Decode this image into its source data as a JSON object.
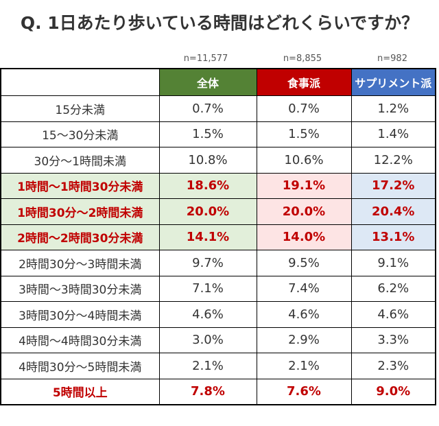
{
  "title": "Q. 1日あたり歩いている時間はどれくらいですか？",
  "sample_sizes": [
    "n=11,577",
    "n=8,855",
    "n=982"
  ],
  "columns": [
    {
      "label": "全体",
      "color": "#548235"
    },
    {
      "label": "食事派",
      "color": "#c00000"
    },
    {
      "label": "サプリメント派",
      "color": "#4472c4"
    }
  ],
  "rows": [
    {
      "label": "15分未満",
      "v": [
        "0.7%",
        "0.7%",
        "1.2%"
      ]
    },
    {
      "label": "15～30分未満",
      "v": [
        "1.5%",
        "1.5%",
        "1.4%"
      ]
    },
    {
      "label": "30分～1時間未満",
      "v": [
        "10.8%",
        "10.6%",
        "12.2%"
      ]
    },
    {
      "label": "1時間～1時間30分未満",
      "v": [
        "18.6%",
        "19.1%",
        "17.2%"
      ]
    },
    {
      "label": "1時間30分～2時間未満",
      "v": [
        "20.0%",
        "20.0%",
        "20.4%"
      ]
    },
    {
      "label": "2時間～2時間30分未満",
      "v": [
        "14.1%",
        "14.0%",
        "13.1%"
      ]
    },
    {
      "label": "2時間30分～3時間未満",
      "v": [
        "9.7%",
        "9.5%",
        "9.1%"
      ]
    },
    {
      "label": "3時間～3時間30分未満",
      "v": [
        "7.1%",
        "7.4%",
        "6.2%"
      ]
    },
    {
      "label": "3時間30分～4時間未満",
      "v": [
        "4.6%",
        "4.6%",
        "4.6%"
      ]
    },
    {
      "label": "4時間～4時間30分未満",
      "v": [
        "3.0%",
        "2.9%",
        "3.3%"
      ]
    },
    {
      "label": "4時間30分～5時間未満",
      "v": [
        "2.1%",
        "2.1%",
        "2.3%"
      ]
    },
    {
      "label": "5時間以上",
      "v": [
        "7.8%",
        "7.6%",
        "9.0%"
      ]
    }
  ]
}
